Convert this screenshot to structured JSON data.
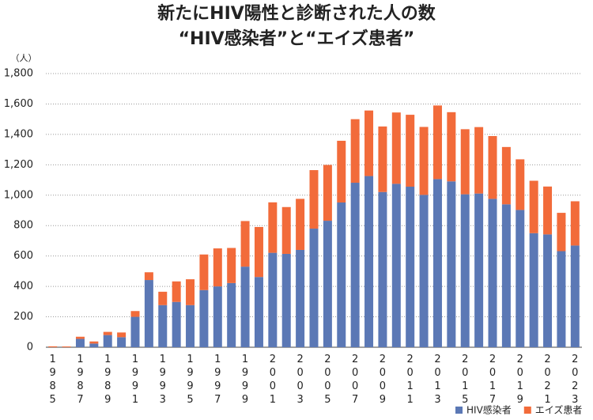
{
  "chart_data": {
    "type": "stacked_bar",
    "title": "新たにHIV陽性と診断された人の数",
    "subtitle": "“HIV感染者”と“エイズ患者”",
    "y_unit": "（人）",
    "categories": [
      "1985",
      null,
      "1987",
      null,
      "1989",
      null,
      "1991",
      null,
      "1993",
      null,
      "1995",
      null,
      "1997",
      null,
      "1999",
      null,
      "2001",
      null,
      "2003",
      null,
      "2005",
      null,
      "2007",
      null,
      "2009",
      null,
      "2011",
      null,
      "2013",
      null,
      "2015",
      null,
      "2017",
      null,
      "2019",
      null,
      "2021",
      null,
      "2023"
    ],
    "series": [
      {
        "name": "HIV感染者",
        "color": "#5b78b5",
        "values": [
          0,
          0,
          55,
          24,
          80,
          66,
          200,
          442,
          277,
          298,
          277,
          376,
          400,
          422,
          530,
          462,
          621,
          614,
          640,
          780,
          832,
          952,
          1082,
          1126,
          1021,
          1075,
          1056,
          1002,
          1106,
          1091,
          1006,
          1011,
          976,
          940,
          903,
          750,
          742,
          632,
          669
        ]
      },
      {
        "name": "エイズ患者",
        "color": "#f26b3a",
        "values": [
          6,
          5,
          14,
          14,
          21,
          31,
          38,
          51,
          88,
          135,
          170,
          234,
          250,
          231,
          300,
          329,
          332,
          308,
          336,
          385,
          367,
          406,
          418,
          431,
          431,
          469,
          473,
          447,
          484,
          455,
          428,
          437,
          413,
          377,
          333,
          345,
          315,
          252,
          291
        ]
      }
    ],
    "ylim": [
      0,
      1800
    ],
    "yticks": [
      0,
      200,
      400,
      600,
      800,
      {
        "value": 1000,
        "label": "1,000"
      },
      {
        "value": 1200,
        "label": "1,200"
      },
      {
        "value": 1400,
        "label": "1,400"
      },
      {
        "value": 1600,
        "label": "1,600"
      },
      {
        "value": 1800,
        "label": "1,800"
      }
    ],
    "grid": true,
    "legend": "bottom-right"
  }
}
